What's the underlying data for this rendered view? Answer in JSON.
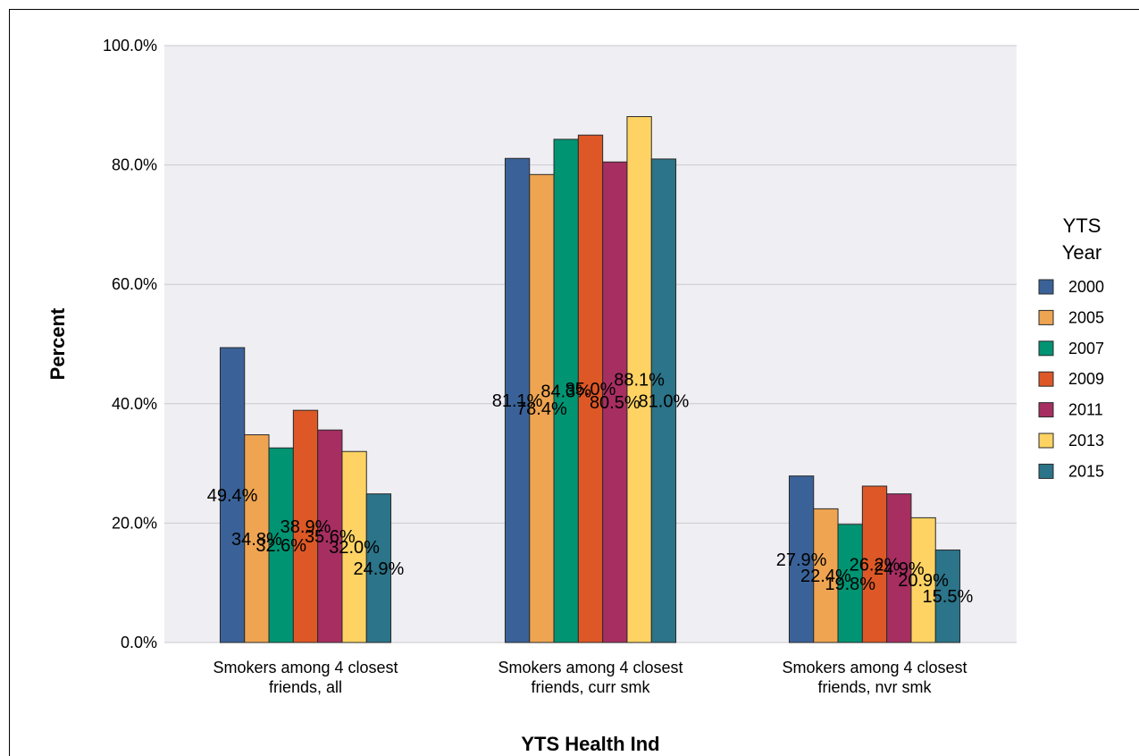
{
  "chart_data": {
    "type": "bar",
    "categories": [
      [
        "Smokers among 4 closest",
        "friends, all"
      ],
      [
        "Smokers among 4 closest",
        "friends, curr smk"
      ],
      [
        "Smokers among 4 closest",
        "friends, nvr smk"
      ]
    ],
    "series": [
      {
        "name": "2000",
        "color": "#3a6298",
        "values": [
          49.4,
          81.1,
          27.9
        ]
      },
      {
        "name": "2005",
        "color": "#eea451",
        "values": [
          34.8,
          78.4,
          22.4
        ]
      },
      {
        "name": "2007",
        "color": "#009473",
        "values": [
          32.6,
          84.3,
          19.8
        ]
      },
      {
        "name": "2009",
        "color": "#dd5826",
        "values": [
          38.9,
          85.0,
          26.2
        ]
      },
      {
        "name": "2011",
        "color": "#a62e61",
        "values": [
          35.6,
          80.5,
          24.9
        ]
      },
      {
        "name": "2013",
        "color": "#fed363",
        "values": [
          32.0,
          88.1,
          20.9
        ]
      },
      {
        "name": "2015",
        "color": "#2b7489",
        "values": [
          24.9,
          81.0,
          15.5
        ]
      }
    ],
    "data_labels": [
      [
        "49.4%",
        "81.1%",
        "27.9%"
      ],
      [
        "34.8%",
        "78.4%",
        "22.4%"
      ],
      [
        "32.6%",
        "84.3%",
        "19.8%"
      ],
      [
        "38.9%",
        "85.0%",
        "26.2%"
      ],
      [
        "35.6%",
        "80.5%",
        "24.9%"
      ],
      [
        "32.0%",
        "88.1%",
        "20.9%"
      ],
      [
        "24.9%",
        "81.0%",
        "15.5%"
      ]
    ],
    "xlabel": "YTS Health Ind",
    "ylabel": "Percent",
    "ylim": [
      0,
      100
    ],
    "yticks": [
      0,
      20,
      40,
      60,
      80,
      100
    ],
    "ytick_labels": [
      "0.0%",
      "20.0%",
      "40.0%",
      "60.0%",
      "80.0%",
      "100.0%"
    ],
    "grid": true,
    "legend": {
      "title": [
        "YTS",
        "Year"
      ],
      "position": "right"
    },
    "plot_background": "#efeef3"
  }
}
